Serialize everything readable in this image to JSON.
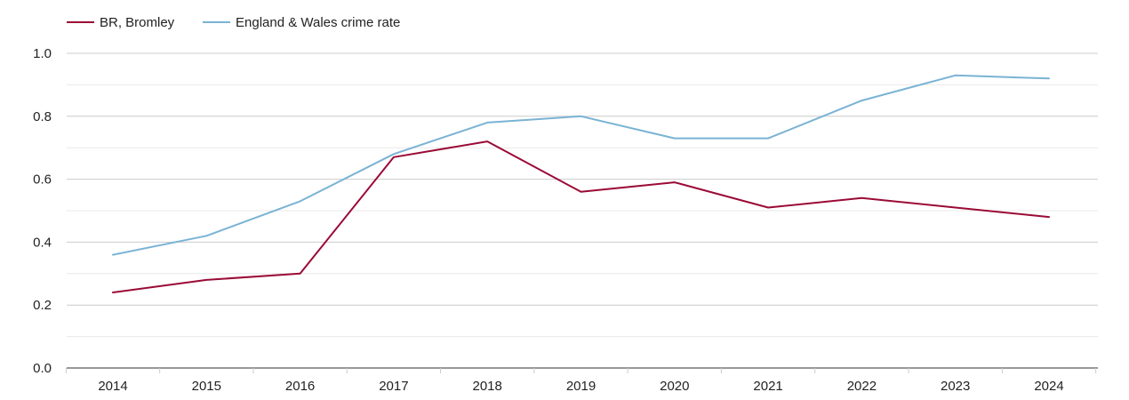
{
  "chart_data": {
    "type": "line",
    "title": "",
    "xlabel": "",
    "ylabel": "",
    "categories": [
      "2014",
      "2015",
      "2016",
      "2017",
      "2018",
      "2019",
      "2020",
      "2021",
      "2022",
      "2023",
      "2024"
    ],
    "series": [
      {
        "name": "BR, Bromley",
        "color": "#9b0a36",
        "values": [
          0.24,
          0.28,
          0.3,
          0.67,
          0.72,
          0.56,
          0.59,
          0.51,
          0.54,
          0.51,
          0.48
        ]
      },
      {
        "name": "England & Wales crime rate",
        "color": "#7ab3d4",
        "values": [
          0.36,
          0.42,
          0.53,
          0.68,
          0.78,
          0.8,
          0.73,
          0.73,
          0.85,
          0.93,
          0.92
        ]
      }
    ],
    "ylim": [
      0,
      1.0
    ],
    "yticks": [
      "0.0",
      "0.2",
      "0.4",
      "0.6",
      "0.8",
      "1.0"
    ],
    "grid": true,
    "legend": "top-left"
  }
}
